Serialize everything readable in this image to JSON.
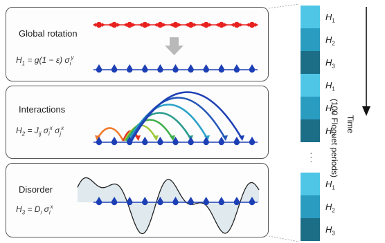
{
  "panels": [
    {
      "title": "Global rotation",
      "formula": {
        "lhs": "H",
        "lhs_sub": "1",
        "rhs": "= g(1 − ε) σ",
        "rhs_sub": "i",
        "rhs_sup": "y"
      }
    },
    {
      "title": "Interactions",
      "formula": {
        "lhs": "H",
        "lhs_sub": "2",
        "rhs": "= J",
        "rhs_sub": "ij",
        "rhs2": " σ",
        "rhs2_sub": "i",
        "rhs2_sup": "x",
        "rhs3": " σ",
        "rhs3_sub": "j",
        "rhs3_sup": "x"
      }
    },
    {
      "title": "Disorder",
      "formula": {
        "lhs": "H",
        "lhs_sub": "3",
        "rhs": "= D",
        "rhs_sub": "i",
        "rhs2": " σ",
        "rhs2_sub": "i",
        "rhs2_sup": "x"
      }
    }
  ],
  "sequence": {
    "blocks": [
      {
        "labels": [
          "H",
          "H",
          "H"
        ],
        "subs": [
          "1",
          "2",
          "3"
        ]
      },
      {
        "labels": [
          "H",
          "H",
          "H"
        ],
        "subs": [
          "1",
          "2",
          "3"
        ]
      },
      {
        "labels": [
          "H",
          "H",
          "H"
        ],
        "subs": [
          "1",
          "2",
          "3"
        ]
      }
    ],
    "colors": [
      "#4fc6e6",
      "#2a9cc0",
      "#1b6e86"
    ]
  },
  "time_label": "Time",
  "period_label": "(100 Floquet periods)",
  "spin_colors": {
    "red": "#e8211f",
    "blue": "#1d3fb5"
  },
  "arc_colors": [
    "#f07a2c",
    "#e23124",
    "#9ec93a",
    "#3fae4c",
    "#2a9b8f",
    "#2aa2c9",
    "#2457b8"
  ]
}
